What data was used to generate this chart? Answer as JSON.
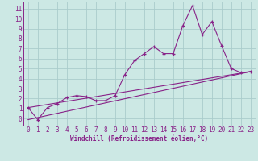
{
  "bg_color": "#cce8e4",
  "grid_color": "#aacccc",
  "line_color": "#882288",
  "xlabel": "Windchill (Refroidissement éolien,°C)",
  "xlabel_fontsize": 5.5,
  "tick_fontsize": 5.5,
  "xlim": [
    -0.5,
    23.5
  ],
  "ylim": [
    -0.7,
    11.7
  ],
  "yticks": [
    0,
    1,
    2,
    3,
    4,
    5,
    6,
    7,
    8,
    9,
    10,
    11
  ],
  "xticks": [
    0,
    1,
    2,
    3,
    4,
    5,
    6,
    7,
    8,
    9,
    10,
    11,
    12,
    13,
    14,
    15,
    16,
    17,
    18,
    19,
    20,
    21,
    22,
    23
  ],
  "jagged_x": [
    0,
    1,
    2,
    3,
    4,
    5,
    6,
    7,
    8,
    9,
    10,
    11,
    12,
    13,
    14,
    15,
    16,
    17,
    18,
    19,
    20,
    21,
    22,
    23
  ],
  "jagged_y": [
    1.1,
    -0.1,
    1.1,
    1.5,
    2.1,
    2.3,
    2.2,
    1.8,
    1.8,
    2.3,
    4.4,
    5.8,
    6.5,
    7.2,
    6.5,
    6.5,
    9.3,
    11.3,
    8.4,
    9.7,
    7.3,
    5.0,
    4.6,
    4.7
  ],
  "line1_x": [
    0,
    23
  ],
  "line1_y": [
    1.1,
    4.7
  ],
  "line2_x": [
    0,
    23
  ],
  "line2_y": [
    -0.1,
    4.7
  ]
}
